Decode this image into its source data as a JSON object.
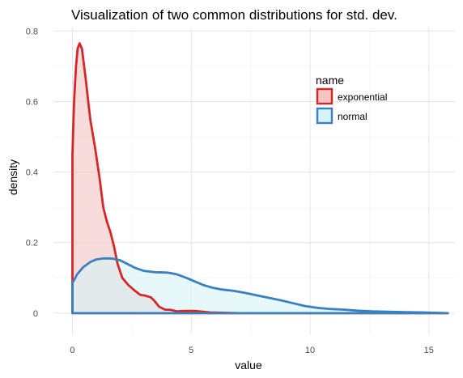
{
  "chart_data": {
    "type": "area",
    "title": "Visualization of two common distributions for std. dev.",
    "xlabel": "value",
    "ylabel": "density",
    "xlim": [
      -0.8,
      16.1
    ],
    "ylim": [
      -0.06,
      0.81
    ],
    "x_ticks": [
      0,
      5,
      10,
      15
    ],
    "y_ticks": [
      0,
      0.2,
      0.4,
      0.6,
      0.8
    ],
    "x_tick_labels": [
      "0",
      "5",
      "10",
      "15"
    ],
    "y_tick_labels": [
      "0",
      "0.2",
      "0.4",
      "0.6",
      "0.8"
    ],
    "grid": true,
    "legend": {
      "title": "name",
      "position": "right-inside"
    },
    "series": [
      {
        "name": "exponential",
        "stroke": "#d62728",
        "fill": "#f4c4c4",
        "points": [
          [
            0,
            0.0
          ],
          [
            0.0,
            0.45
          ],
          [
            0.07,
            0.6
          ],
          [
            0.15,
            0.7
          ],
          [
            0.22,
            0.75
          ],
          [
            0.3,
            0.765
          ],
          [
            0.4,
            0.75
          ],
          [
            0.55,
            0.67
          ],
          [
            0.75,
            0.55
          ],
          [
            0.95,
            0.47
          ],
          [
            1.15,
            0.38
          ],
          [
            1.3,
            0.3
          ],
          [
            1.45,
            0.26
          ],
          [
            1.6,
            0.23
          ],
          [
            1.75,
            0.19
          ],
          [
            1.9,
            0.14
          ],
          [
            2.1,
            0.1
          ],
          [
            2.35,
            0.08
          ],
          [
            2.6,
            0.065
          ],
          [
            2.85,
            0.052
          ],
          [
            3.05,
            0.05
          ],
          [
            3.3,
            0.045
          ],
          [
            3.45,
            0.035
          ],
          [
            3.65,
            0.018
          ],
          [
            3.9,
            0.01
          ],
          [
            4.15,
            0.009
          ],
          [
            4.4,
            0.005
          ],
          [
            4.75,
            0.006
          ],
          [
            5.15,
            0.006
          ],
          [
            5.5,
            0.004
          ],
          [
            5.8,
            0.002
          ],
          [
            6.4,
            0.001
          ],
          [
            7.0,
            0.0
          ],
          [
            15.8,
            0.0
          ]
        ]
      },
      {
        "name": "normal",
        "stroke": "#3a7fbf",
        "fill": "#d6f3f6",
        "points": [
          [
            0,
            0.0
          ],
          [
            0.0,
            0.085
          ],
          [
            0.2,
            0.11
          ],
          [
            0.45,
            0.13
          ],
          [
            0.75,
            0.145
          ],
          [
            1.0,
            0.152
          ],
          [
            1.3,
            0.155
          ],
          [
            1.65,
            0.155
          ],
          [
            2.0,
            0.15
          ],
          [
            2.3,
            0.14
          ],
          [
            2.65,
            0.128
          ],
          [
            3.0,
            0.12
          ],
          [
            3.5,
            0.116
          ],
          [
            4.0,
            0.115
          ],
          [
            4.4,
            0.11
          ],
          [
            4.8,
            0.1
          ],
          [
            5.15,
            0.09
          ],
          [
            5.5,
            0.08
          ],
          [
            5.9,
            0.072
          ],
          [
            6.3,
            0.067
          ],
          [
            6.8,
            0.063
          ],
          [
            7.3,
            0.057
          ],
          [
            7.8,
            0.05
          ],
          [
            8.3,
            0.043
          ],
          [
            8.8,
            0.036
          ],
          [
            9.3,
            0.028
          ],
          [
            9.8,
            0.02
          ],
          [
            10.3,
            0.015
          ],
          [
            10.8,
            0.012
          ],
          [
            11.4,
            0.01
          ],
          [
            12.0,
            0.007
          ],
          [
            12.6,
            0.005
          ],
          [
            13.3,
            0.004
          ],
          [
            14.0,
            0.003
          ],
          [
            14.8,
            0.002
          ],
          [
            15.8,
            0.0
          ]
        ]
      }
    ]
  }
}
